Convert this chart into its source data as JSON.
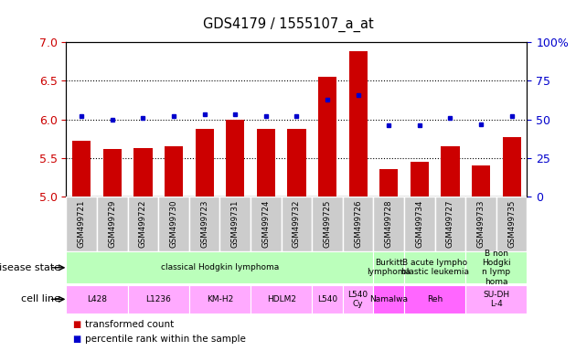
{
  "title": "GDS4179 / 1555107_a_at",
  "samples": [
    "GSM499721",
    "GSM499729",
    "GSM499722",
    "GSM499730",
    "GSM499723",
    "GSM499731",
    "GSM499724",
    "GSM499732",
    "GSM499725",
    "GSM499726",
    "GSM499728",
    "GSM499734",
    "GSM499727",
    "GSM499733",
    "GSM499735"
  ],
  "bar_values": [
    5.72,
    5.62,
    5.63,
    5.65,
    5.88,
    5.99,
    5.88,
    5.88,
    6.55,
    6.88,
    5.35,
    5.45,
    5.65,
    5.4,
    5.77
  ],
  "dot_values": [
    52,
    50,
    51,
    52,
    53,
    53,
    52,
    52,
    63,
    66,
    46,
    46,
    51,
    47,
    52
  ],
  "ylim_left": [
    5.0,
    7.0
  ],
  "ylim_right": [
    0,
    100
  ],
  "yticks_left": [
    5.0,
    5.5,
    6.0,
    6.5,
    7.0
  ],
  "yticks_right": [
    0,
    25,
    50,
    75,
    100
  ],
  "bar_color": "#cc0000",
  "dot_color": "#0000cc",
  "hline_values": [
    5.5,
    6.0,
    6.5
  ],
  "disease_state_groups": [
    {
      "label": "classical Hodgkin lymphoma",
      "start": 0,
      "end": 10,
      "color": "#bbffbb"
    },
    {
      "label": "Burkitt\nlymphoma",
      "start": 10,
      "end": 11,
      "color": "#bbffbb"
    },
    {
      "label": "B acute lympho\nblastic leukemia",
      "start": 11,
      "end": 13,
      "color": "#bbffbb"
    },
    {
      "label": "B non\nHodgki\nn lymp\nhoma",
      "start": 13,
      "end": 15,
      "color": "#bbffbb"
    }
  ],
  "cell_line_groups": [
    {
      "label": "L428",
      "start": 0,
      "end": 2,
      "color": "#ffaaff"
    },
    {
      "label": "L1236",
      "start": 2,
      "end": 4,
      "color": "#ffaaff"
    },
    {
      "label": "KM-H2",
      "start": 4,
      "end": 6,
      "color": "#ffaaff"
    },
    {
      "label": "HDLM2",
      "start": 6,
      "end": 8,
      "color": "#ffaaff"
    },
    {
      "label": "L540",
      "start": 8,
      "end": 9,
      "color": "#ffaaff"
    },
    {
      "label": "L540\nCy",
      "start": 9,
      "end": 10,
      "color": "#ffaaff"
    },
    {
      "label": "Namalwa",
      "start": 10,
      "end": 11,
      "color": "#ff66ff"
    },
    {
      "label": "Reh",
      "start": 11,
      "end": 13,
      "color": "#ff66ff"
    },
    {
      "label": "SU-DH\nL-4",
      "start": 13,
      "end": 15,
      "color": "#ffaaff"
    }
  ],
  "legend_items": [
    {
      "label": "transformed count",
      "color": "#cc0000"
    },
    {
      "label": "percentile rank within the sample",
      "color": "#0000cc"
    }
  ],
  "left_axis_color": "#cc0000",
  "right_axis_color": "#0000cc",
  "xtick_bg_color": "#cccccc",
  "xtick_separator_color": "#ffffff"
}
